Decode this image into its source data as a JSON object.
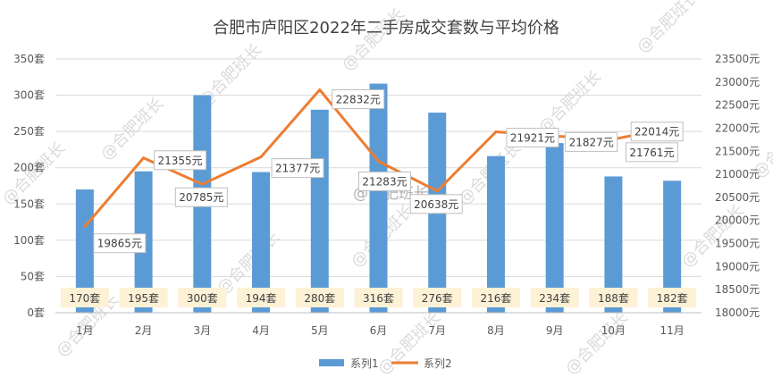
{
  "chart_data": {
    "type": "bar+line",
    "title": "合肥市庐阳区2022年二手房成交套数与平均价格",
    "categories": [
      "1月",
      "2月",
      "3月",
      "4月",
      "5月",
      "6月",
      "7月",
      "8月",
      "9月",
      "10月",
      "11月"
    ],
    "series": [
      {
        "name": "系列1",
        "type": "bar",
        "axis": "left",
        "values": [
          170,
          195,
          300,
          194,
          280,
          316,
          276,
          216,
          234,
          188,
          182
        ],
        "labels": [
          "170套",
          "195套",
          "300套",
          "194套",
          "280套",
          "316套",
          "276套",
          "216套",
          "234套",
          "188套",
          "182套"
        ],
        "color": "#5B9BD5"
      },
      {
        "name": "系列2",
        "type": "line",
        "axis": "right",
        "values": [
          19865,
          21355,
          20785,
          21377,
          22832,
          21283,
          20638,
          21921,
          21827,
          21761,
          22014
        ],
        "labels": [
          "19865元",
          "21355元",
          "20785元",
          "21377元",
          "22832元",
          "21283元",
          "20638元",
          "21921元",
          "21827元",
          "21761元",
          "22014元"
        ],
        "color": "#ED7D31"
      }
    ],
    "y_left": {
      "min": 0,
      "max": 350,
      "step": 50,
      "tick_labels": [
        "0套",
        "50套",
        "100套",
        "150套",
        "200套",
        "250套",
        "300套",
        "350套"
      ]
    },
    "y_right": {
      "min": 18000,
      "max": 23500,
      "step": 500,
      "tick_labels": [
        "18000元",
        "18500元",
        "19000元",
        "19500元",
        "20000元",
        "20500元",
        "21000元",
        "21500元",
        "22000元",
        "22500元",
        "23000元",
        "23500元"
      ]
    },
    "grid": true,
    "legend": "bottom",
    "watermark": "@合肥班长"
  }
}
